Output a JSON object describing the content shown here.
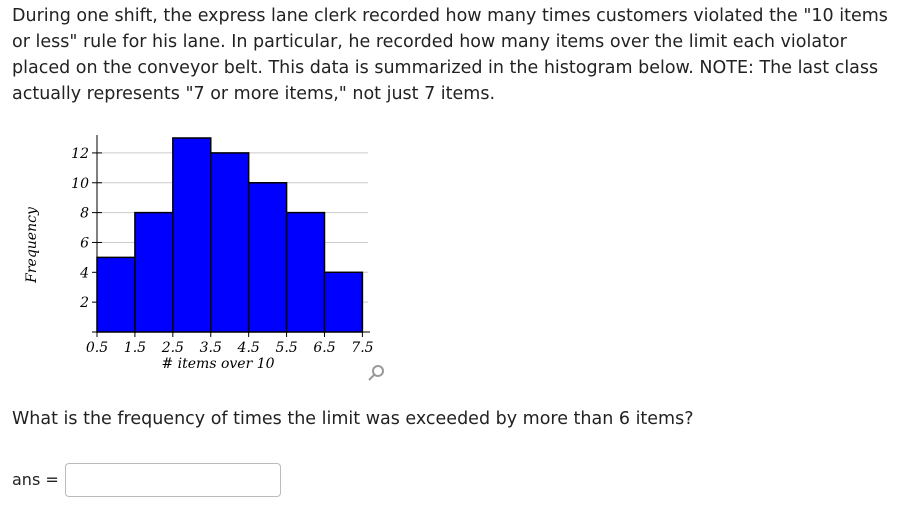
{
  "question": "During one shift, the express lane clerk recorded how many times customers violated the \"10 items or less\" rule for his lane. In particular, he recorded how many items over the limit each violator placed on the conveyor belt. This data is summarized in the histogram below. NOTE: The last class actually represents \"7 or more items,\" not just 7 items.",
  "chart_data": {
    "type": "histogram",
    "x_label": "# items over 10",
    "y_label": "Frequency",
    "bins": [
      0.5,
      1.5,
      2.5,
      3.5,
      4.5,
      5.5,
      6.5,
      7.5
    ],
    "values": [
      5,
      8,
      13,
      12,
      10,
      8,
      4
    ],
    "color": "#0000ff",
    "xlim": [
      0.5,
      7.7
    ],
    "xticks": [
      0.5,
      1.5,
      2.5,
      3.5,
      4.5,
      5.5,
      6.5,
      7.5
    ],
    "ylim": [
      0,
      13.2
    ],
    "yticks": [
      2,
      4,
      6,
      8,
      10,
      12
    ],
    "grid": true
  },
  "prompt": "What is the frequency of times the limit was exceeded by more than 6 items?",
  "answer_label": "ans ="
}
